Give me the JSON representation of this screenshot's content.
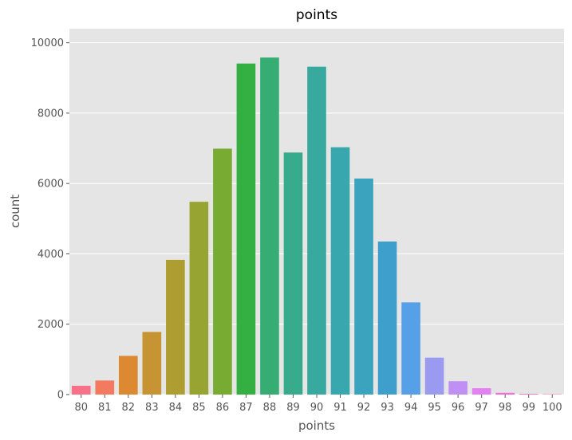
{
  "chart_data": {
    "type": "bar",
    "title": "points",
    "xlabel": "points",
    "ylabel": "count",
    "categories": [
      "80",
      "81",
      "82",
      "83",
      "84",
      "85",
      "86",
      "87",
      "88",
      "89",
      "90",
      "91",
      "92",
      "93",
      "94",
      "95",
      "96",
      "97",
      "98",
      "99",
      "100"
    ],
    "values": [
      250,
      400,
      1100,
      1780,
      3830,
      5480,
      6990,
      9410,
      9580,
      6880,
      9320,
      7030,
      6140,
      4350,
      2620,
      1050,
      380,
      180,
      50,
      20,
      10
    ],
    "yticks": [
      0,
      2000,
      4000,
      6000,
      8000,
      10000
    ],
    "ylim": [
      0,
      10400
    ],
    "grid": true,
    "background": "#e5e5e5",
    "colors": [
      "#f77189",
      "#f3795f",
      "#dc8932",
      "#c69432",
      "#ae9d31",
      "#97a431",
      "#77ab31",
      "#34af42",
      "#36ad72",
      "#37ab8b",
      "#38a99e",
      "#39a7ae",
      "#3ba3bd",
      "#3e9fcc",
      "#56a0e8",
      "#9a9af0",
      "#c08ff4",
      "#e380f3",
      "#f569da",
      "#f66fba",
      "#f572a3"
    ]
  }
}
